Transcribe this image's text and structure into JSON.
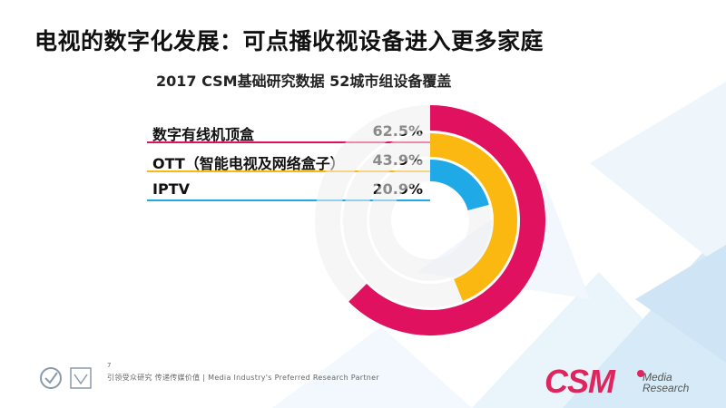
{
  "slide": {
    "title": "电视的数字化发展：可点播收视设备进入更多家庭",
    "page_number": "7"
  },
  "colors": {
    "magenta": "#e0115f",
    "yellow": "#fbb811",
    "blue": "#1fa9e6",
    "track": "#eeeeee",
    "background_triangles": "#d9ecf7"
  },
  "chart_data": {
    "type": "radial-bar",
    "title": "2017 CSM基础研究数据 52城市组设备覆盖",
    "unit": "%",
    "max": 100,
    "categories": [
      "数字有线机顶盒",
      "OTT（智能电视及网络盒子）",
      "IPTV"
    ],
    "values": [
      62.5,
      43.9,
      20.9
    ],
    "value_labels": [
      "62.5%",
      "43.9%",
      "20.9%"
    ],
    "colors": [
      "#e0115f",
      "#fbb811",
      "#1fa9e6"
    ]
  },
  "footer": {
    "tagline": "引领受众研究  传递传媒价值 | Media Industry's Preferred Research Partner"
  },
  "logo": {
    "wordmark": "CSM",
    "line1": "Media",
    "line2": "Research"
  }
}
